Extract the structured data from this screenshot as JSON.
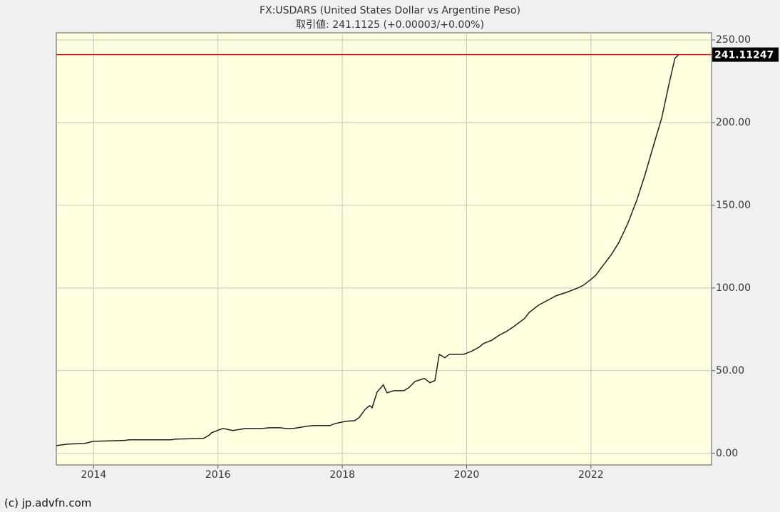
{
  "chart_data": {
    "type": "line",
    "title": "FX:USDARS (United States Dollar vs Argentine Peso)",
    "subtitle": "取引値: 241.1125 (+0.00003/+0.00%)",
    "footer": "(c) jp.advfn.com",
    "x": [
      2013.4,
      2013.59,
      2013.85,
      2014.0,
      2014.5,
      2014.56,
      2015.25,
      2015.31,
      2015.77,
      2015.85,
      2015.9,
      2016.08,
      2016.24,
      2016.45,
      2016.72,
      2016.83,
      2017.0,
      2017.08,
      2017.22,
      2017.43,
      2017.54,
      2017.8,
      2017.89,
      2018.06,
      2018.2,
      2018.27,
      2018.37,
      2018.44,
      2018.48,
      2018.56,
      2018.66,
      2018.72,
      2018.83,
      2018.99,
      2019.07,
      2019.17,
      2019.32,
      2019.41,
      2019.49,
      2019.56,
      2019.65,
      2019.72,
      2019.95,
      2020.07,
      2020.2,
      2020.27,
      2020.41,
      2020.53,
      2020.64,
      2020.76,
      2020.93,
      2021.01,
      2021.16,
      2021.33,
      2021.44,
      2021.61,
      2021.79,
      2021.88,
      2022.0,
      2022.08,
      2022.18,
      2022.33,
      2022.45,
      2022.59,
      2022.74,
      2022.87,
      2023.02,
      2023.14,
      2023.25,
      2023.35,
      2023.41
    ],
    "values": [
      4.7,
      5.6,
      6.0,
      7.3,
      7.8,
      8.2,
      8.2,
      8.6,
      9.1,
      10.8,
      12.5,
      15.1,
      13.8,
      15.1,
      15.1,
      15.5,
      15.5,
      15.1,
      15.1,
      16.4,
      16.8,
      16.8,
      18.1,
      19.4,
      19.8,
      21.6,
      26.7,
      28.9,
      27.6,
      37.1,
      41.4,
      36.6,
      37.9,
      37.9,
      39.7,
      43.5,
      45.3,
      42.7,
      44.0,
      59.9,
      57.8,
      59.9,
      59.9,
      61.6,
      64.2,
      66.4,
      68.5,
      71.6,
      73.7,
      76.7,
      81.5,
      85.3,
      89.7,
      93.1,
      95.3,
      97.4,
      100.0,
      101.7,
      105.2,
      107.8,
      112.9,
      120.3,
      127.6,
      138.8,
      153.4,
      168.5,
      187.9,
      203.0,
      222.4,
      238.8,
      241.1
    ],
    "color": "#202020",
    "price_line": {
      "value": 241.11247,
      "color": "#e00000"
    },
    "xlim": [
      2013.4,
      2023.94
    ],
    "xticks": [
      2014,
      2016,
      2018,
      2020,
      2022
    ],
    "ylim": [
      -7,
      254.3
    ],
    "yticks": [
      {
        "value": 0,
        "label": "0.00"
      },
      {
        "value": 50,
        "label": "50.00"
      },
      {
        "value": 100,
        "label": "100.00"
      },
      {
        "value": 150,
        "label": "150.00"
      },
      {
        "value": 200,
        "label": "200.00"
      },
      {
        "value": 250,
        "label": "250.00"
      }
    ],
    "grid": true
  }
}
